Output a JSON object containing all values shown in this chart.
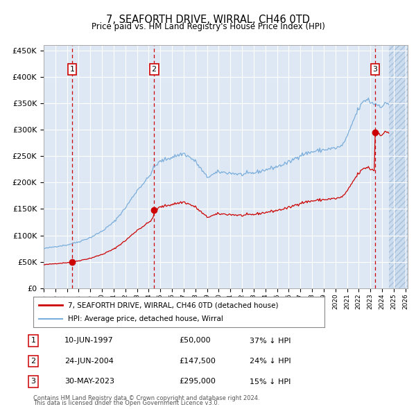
{
  "title": "7, SEAFORTH DRIVE, WIRRAL, CH46 0TD",
  "subtitle": "Price paid vs. HM Land Registry's House Price Index (HPI)",
  "ylim": [
    0,
    460000
  ],
  "yticks": [
    0,
    50000,
    100000,
    150000,
    200000,
    250000,
    300000,
    350000,
    400000,
    450000
  ],
  "ytick_labels": [
    "£0",
    "£50K",
    "£100K",
    "£150K",
    "£200K",
    "£250K",
    "£300K",
    "£350K",
    "£400K",
    "£450K"
  ],
  "xlim_start": 1995.3,
  "xlim_end": 2026.2,
  "hpi_color": "#7aaddb",
  "price_color": "#cc0000",
  "vline_color": "#cc0000",
  "background_color": "#dde8f4",
  "grid_color": "#ffffff",
  "transactions": [
    {
      "label": 1,
      "date_str": "10-JUN-1997",
      "year": 1997.44,
      "price": 50000,
      "pct": "37%"
    },
    {
      "label": 2,
      "date_str": "24-JUN-2004",
      "year": 2004.46,
      "price": 147500,
      "pct": "24%"
    },
    {
      "label": 3,
      "date_str": "30-MAY-2023",
      "year": 2023.41,
      "price": 295000,
      "pct": "15%"
    }
  ],
  "legend_line1": "7, SEAFORTH DRIVE, WIRRAL, CH46 0TD (detached house)",
  "legend_line2": "HPI: Average price, detached house, Wirral",
  "footer_line1": "Contains HM Land Registry data © Crown copyright and database right 2024.",
  "footer_line2": "This data is licensed under the Open Government Licence v3.0.",
  "hatch_start": 2024.58
}
